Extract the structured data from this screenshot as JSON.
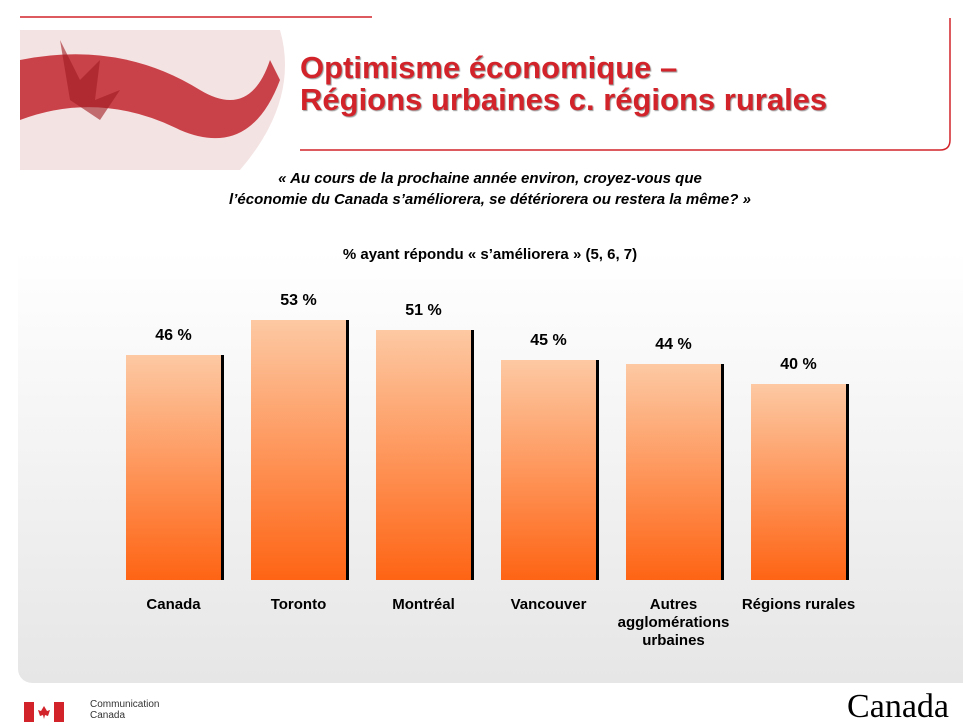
{
  "chart_data": {
    "type": "bar",
    "title": [
      "Optimisme économique –",
      "Régions urbaines c. régions rurales"
    ],
    "question": [
      "« Au cours de la prochaine année environ, croyez-vous que",
      "l’économie du Canada s’améliorera, se détériorera ou restera la même? »"
    ],
    "subtitle": "% ayant répondu « s’améliorera » (5, 6, 7)",
    "categories": [
      "Canada",
      "Toronto",
      "Montréal",
      "Vancouver",
      "Autres agglomérations urbaines",
      "Régions rurales"
    ],
    "values": [
      46,
      53,
      51,
      45,
      44,
      40
    ],
    "value_labels": [
      "46 %",
      "53 %",
      "51 %",
      "45 %",
      "44 %",
      "40 %"
    ],
    "color": "#fe6414"
  },
  "footer": {
    "department": [
      "Communication",
      "Canada"
    ],
    "wordmark": "Canada"
  }
}
